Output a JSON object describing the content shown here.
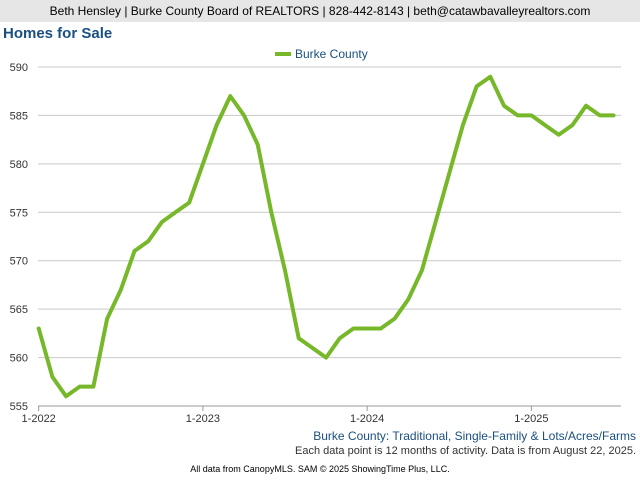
{
  "header": {
    "contact": "Beth Hensley | Burke County Board of REALTORS | 828-442-8143 | beth@catawbavalleyrealtors.com"
  },
  "chart_data": {
    "type": "line",
    "title": "Homes for Sale",
    "legend_position": "top-center",
    "grid": "horizontal",
    "x_range": [
      "2022-01",
      "2025-07"
    ],
    "x_tick_labels": [
      "1-2022",
      "1-2023",
      "1-2024",
      "1-2025"
    ],
    "ylim": [
      555,
      590
    ],
    "y_ticks": [
      555,
      560,
      565,
      570,
      575,
      580,
      585,
      590
    ],
    "x": [
      "2022-01",
      "2022-02",
      "2022-03",
      "2022-04",
      "2022-05",
      "2022-06",
      "2022-07",
      "2022-08",
      "2022-09",
      "2022-10",
      "2022-11",
      "2022-12",
      "2023-01",
      "2023-02",
      "2023-03",
      "2023-04",
      "2023-05",
      "2023-06",
      "2023-07",
      "2023-08",
      "2023-09",
      "2023-10",
      "2023-11",
      "2023-12",
      "2024-01",
      "2024-02",
      "2024-03",
      "2024-04",
      "2024-05",
      "2024-06",
      "2024-07",
      "2024-08",
      "2024-09",
      "2024-10",
      "2024-11",
      "2024-12",
      "2025-01",
      "2025-02",
      "2025-03",
      "2025-04",
      "2025-05",
      "2025-06",
      "2025-07"
    ],
    "series": [
      {
        "name": "Burke County",
        "color": "#77b82a",
        "values": [
          563,
          558,
          556,
          557,
          557,
          564,
          567,
          571,
          572,
          574,
          575,
          576,
          580,
          584,
          587,
          585,
          582,
          575,
          569,
          562,
          561,
          560,
          562,
          563,
          563,
          563,
          564,
          566,
          569,
          574,
          579,
          584,
          588,
          589,
          586,
          585,
          585,
          584,
          583,
          584,
          586,
          585,
          585
        ]
      }
    ]
  },
  "footnote": {
    "subtitle": "Burke County: Traditional, Single-Family & Lots/Acres/Farms",
    "note": "Each data point is 12 months of activity. Data is from August 22, 2025."
  },
  "footer": {
    "credit": "All data from CanopyMLS. SAM © 2025 ShowingTime Plus, LLC."
  }
}
